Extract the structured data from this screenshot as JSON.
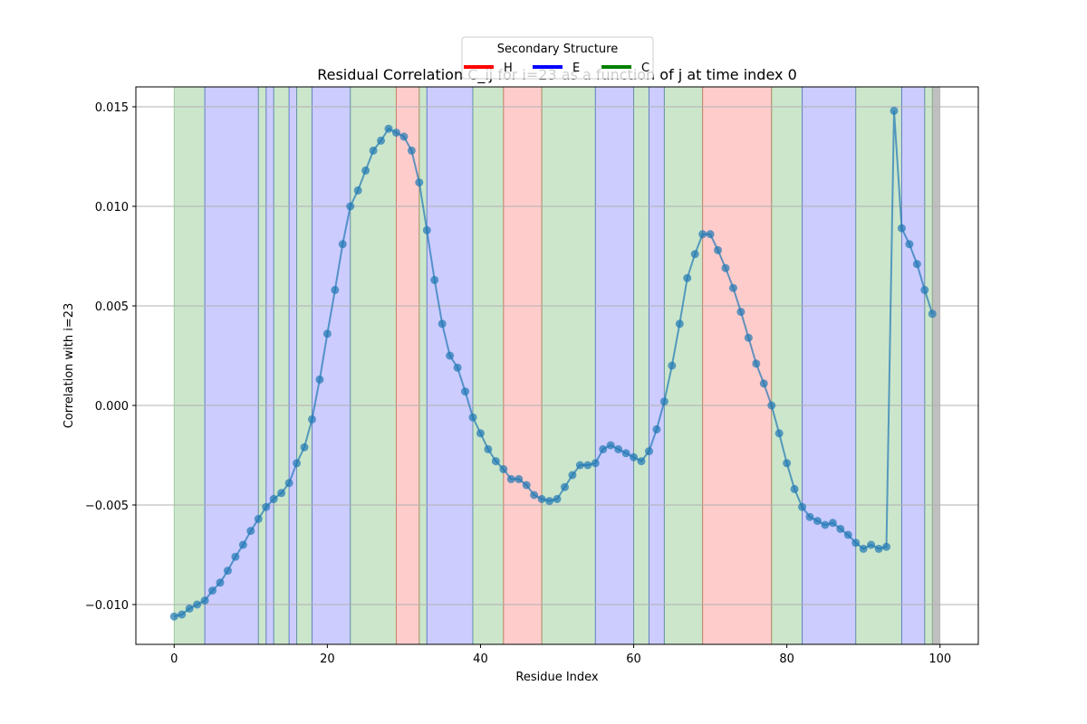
{
  "chart_data": {
    "type": "line",
    "title": "Residual Correlation C_ij for i=23 as a function of j at time index 0",
    "xlabel": "Residue Index",
    "ylabel": "Correlation with i=23",
    "xlim": [
      -5,
      105
    ],
    "ylim": [
      -0.012,
      0.016
    ],
    "xticks": [
      0,
      20,
      40,
      60,
      80,
      100
    ],
    "xtick_labels": [
      "0",
      "20",
      "40",
      "60",
      "80",
      "100"
    ],
    "yticks": [
      -0.01,
      -0.005,
      0.0,
      0.005,
      0.01,
      0.015
    ],
    "ytick_labels": [
      "−0.010",
      "−0.005",
      "0.000",
      "0.005",
      "0.010",
      "0.015"
    ],
    "grid": true,
    "legend": {
      "title": "Secondary Structure",
      "placement": "top-center",
      "entries": [
        {
          "label": "H",
          "color": "#ff0000"
        },
        {
          "label": "E",
          "color": "#0000ff"
        },
        {
          "label": "C",
          "color": "#008000"
        }
      ]
    },
    "line_color": "#1f77b4",
    "region_colors": {
      "H": "#ff0000",
      "E": "#0000ff",
      "C": "#008000",
      "end": "#808080"
    },
    "regions": [
      {
        "start": 0,
        "end": 4,
        "type": "C"
      },
      {
        "start": 4,
        "end": 11,
        "type": "E"
      },
      {
        "start": 11,
        "end": 12,
        "type": "C"
      },
      {
        "start": 12,
        "end": 13,
        "type": "E"
      },
      {
        "start": 13,
        "end": 15,
        "type": "C"
      },
      {
        "start": 15,
        "end": 16,
        "type": "E"
      },
      {
        "start": 16,
        "end": 18,
        "type": "C"
      },
      {
        "start": 18,
        "end": 23,
        "type": "E"
      },
      {
        "start": 23,
        "end": 29,
        "type": "C"
      },
      {
        "start": 29,
        "end": 32,
        "type": "H"
      },
      {
        "start": 32,
        "end": 33,
        "type": "C"
      },
      {
        "start": 33,
        "end": 39,
        "type": "E"
      },
      {
        "start": 39,
        "end": 43,
        "type": "C"
      },
      {
        "start": 43,
        "end": 48,
        "type": "H"
      },
      {
        "start": 48,
        "end": 55,
        "type": "C"
      },
      {
        "start": 55,
        "end": 60,
        "type": "E"
      },
      {
        "start": 60,
        "end": 62,
        "type": "C"
      },
      {
        "start": 62,
        "end": 64,
        "type": "E"
      },
      {
        "start": 64,
        "end": 69,
        "type": "C"
      },
      {
        "start": 69,
        "end": 78,
        "type": "H"
      },
      {
        "start": 78,
        "end": 82,
        "type": "C"
      },
      {
        "start": 82,
        "end": 89,
        "type": "E"
      },
      {
        "start": 89,
        "end": 95,
        "type": "C"
      },
      {
        "start": 95,
        "end": 98,
        "type": "E"
      },
      {
        "start": 98,
        "end": 99,
        "type": "C"
      },
      {
        "start": 99,
        "end": 100,
        "type": "end"
      }
    ],
    "x": [
      0,
      1,
      2,
      3,
      4,
      5,
      6,
      7,
      8,
      9,
      10,
      11,
      12,
      13,
      14,
      15,
      16,
      17,
      18,
      19,
      20,
      21,
      22,
      23,
      24,
      25,
      26,
      27,
      28,
      29,
      30,
      31,
      32,
      33,
      34,
      35,
      36,
      37,
      38,
      39,
      40,
      41,
      42,
      43,
      44,
      45,
      46,
      47,
      48,
      49,
      50,
      51,
      52,
      53,
      54,
      55,
      56,
      57,
      58,
      59,
      60,
      61,
      62,
      63,
      64,
      65,
      66,
      67,
      68,
      69,
      70,
      71,
      72,
      73,
      74,
      75,
      76,
      77,
      78,
      79,
      80,
      81,
      82,
      83,
      84,
      85,
      86,
      87,
      88,
      89,
      90,
      91,
      92,
      93,
      94,
      95,
      96,
      97,
      98,
      99
    ],
    "y": [
      -0.0106,
      -0.0105,
      -0.0102,
      -0.01,
      -0.0098,
      -0.0093,
      -0.0089,
      -0.0083,
      -0.0076,
      -0.007,
      -0.0063,
      -0.0057,
      -0.0051,
      -0.0047,
      -0.0044,
      -0.0039,
      -0.0029,
      -0.0021,
      -0.0007,
      0.0013,
      0.0036,
      0.0058,
      0.0081,
      0.01,
      0.0108,
      0.0118,
      0.0128,
      0.0133,
      0.0139,
      0.0137,
      0.0135,
      0.0128,
      0.0112,
      0.0088,
      0.0063,
      0.0041,
      0.0025,
      0.0019,
      0.0007,
      -0.0006,
      -0.0014,
      -0.0022,
      -0.0028,
      -0.0032,
      -0.0037,
      -0.0037,
      -0.004,
      -0.0045,
      -0.0047,
      -0.0048,
      -0.0047,
      -0.0041,
      -0.0035,
      -0.003,
      -0.003,
      -0.0029,
      -0.0022,
      -0.002,
      -0.0022,
      -0.0024,
      -0.0026,
      -0.0028,
      -0.0023,
      -0.0012,
      0.0002,
      0.002,
      0.0041,
      0.0064,
      0.0076,
      0.0086,
      0.0086,
      0.0078,
      0.0069,
      0.0059,
      0.0047,
      0.0034,
      0.0021,
      0.0011,
      0.0,
      -0.0014,
      -0.0029,
      -0.0042,
      -0.0051,
      -0.0056,
      -0.0058,
      -0.006,
      -0.0059,
      -0.0062,
      -0.0065,
      -0.0069,
      -0.0072,
      -0.007,
      -0.0072,
      -0.0071,
      0.0148,
      0.0089,
      0.0081,
      0.0071,
      0.0058,
      0.0046
    ]
  }
}
